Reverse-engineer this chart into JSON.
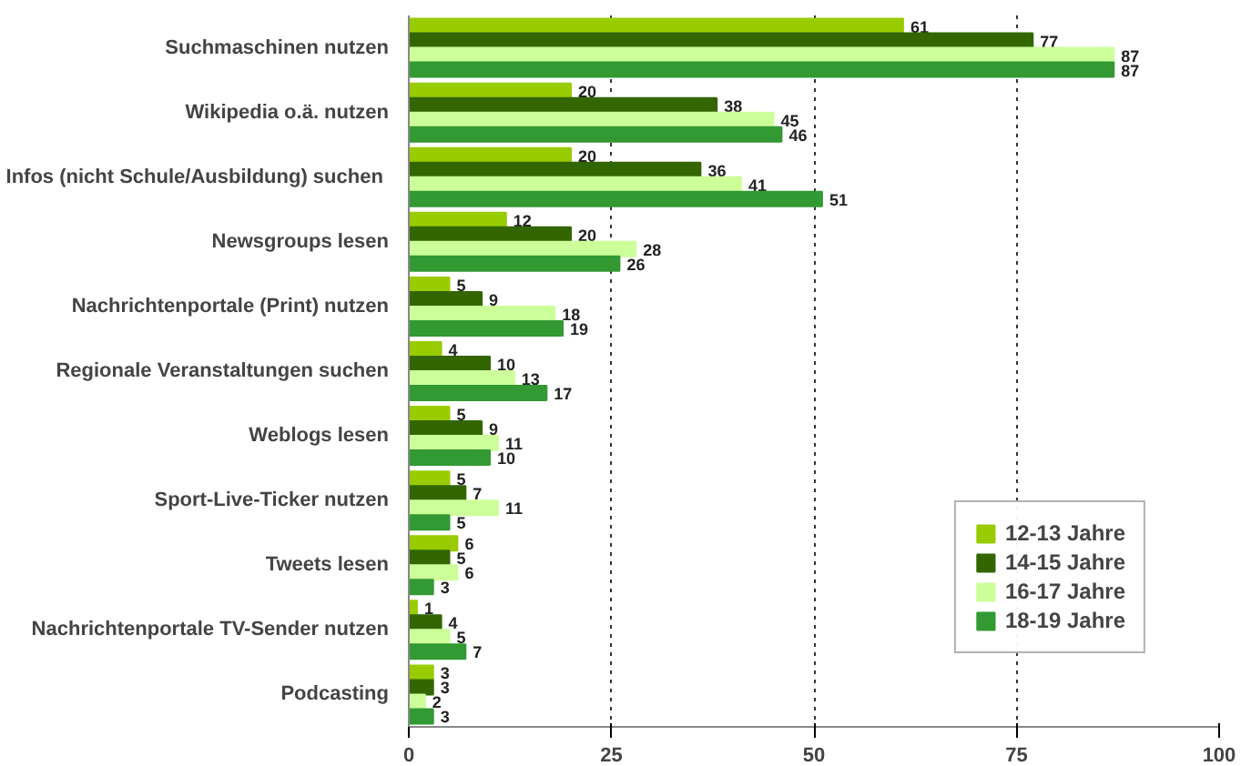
{
  "chart_data": {
    "type": "bar",
    "orientation": "horizontal",
    "categories": [
      "Suchmaschinen nutzen",
      "Wikipedia o.ä. nutzen",
      "Infos (nicht  Schule/Ausbildung) suchen",
      "Newsgroups lesen",
      "Nachrichtenportale (Print) nutzen",
      "Regionale Veranstaltungen suchen",
      "Weblogs lesen",
      "Sport-Live-Ticker nutzen",
      "Tweets lesen",
      "Nachrichtenportale TV-Sender nutzen",
      "Podcasting"
    ],
    "series": [
      {
        "name": "12-13 Jahre",
        "color": "#99cc00",
        "values": [
          61,
          20,
          20,
          12,
          5,
          4,
          5,
          5,
          6,
          1,
          3
        ]
      },
      {
        "name": "14-15 Jahre",
        "color": "#336600",
        "values": [
          77,
          38,
          36,
          20,
          9,
          10,
          9,
          7,
          5,
          4,
          3
        ]
      },
      {
        "name": "16-17 Jahre",
        "color": "#ccff99",
        "values": [
          87,
          45,
          41,
          28,
          18,
          13,
          11,
          11,
          6,
          5,
          2
        ]
      },
      {
        "name": "18-19 Jahre",
        "color": "#339933",
        "values": [
          87,
          46,
          51,
          26,
          19,
          17,
          10,
          5,
          3,
          7,
          3
        ]
      }
    ],
    "xlim": [
      0,
      100
    ],
    "xticks": [
      0,
      25,
      50,
      75,
      100
    ],
    "grid": "x",
    "legend": "bottom right",
    "data_labels": true
  }
}
